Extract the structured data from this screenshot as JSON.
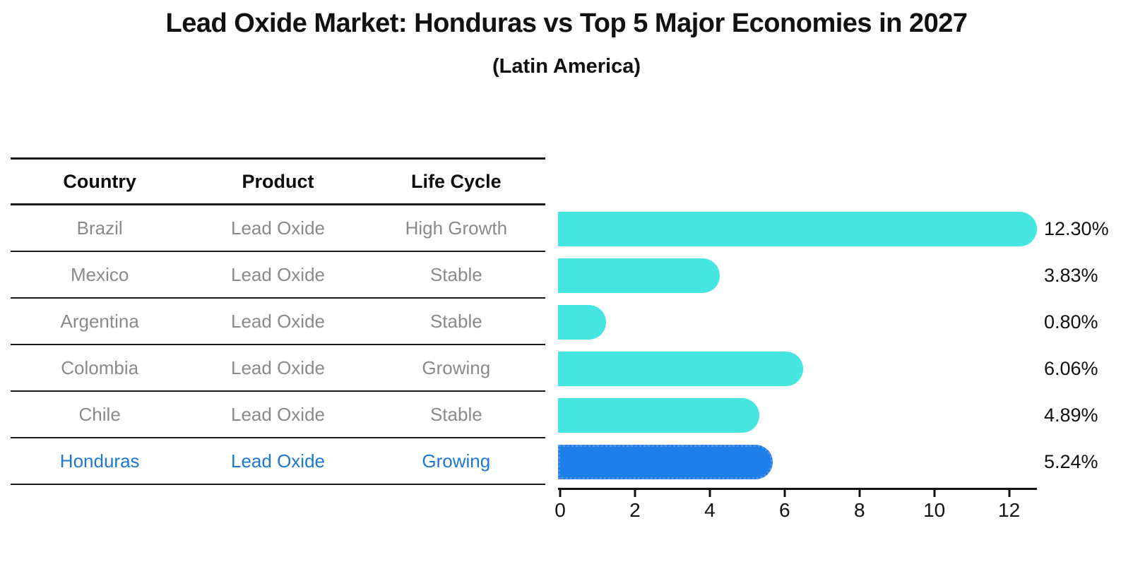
{
  "title": "Lead Oxide Market: Honduras vs Top 5 Major Economies in 2027",
  "subtitle": "(Latin America)",
  "table": {
    "headers": [
      "Country",
      "Product",
      "Life Cycle"
    ],
    "rows": [
      {
        "country": "Brazil",
        "product": "Lead Oxide",
        "life_cycle": "High Growth",
        "highlight": false
      },
      {
        "country": "Mexico",
        "product": "Lead Oxide",
        "life_cycle": "Stable",
        "highlight": false
      },
      {
        "country": "Argentina",
        "product": "Lead Oxide",
        "life_cycle": "Stable",
        "highlight": false
      },
      {
        "country": "Colombia",
        "product": "Lead Oxide",
        "life_cycle": "Growing",
        "highlight": false
      },
      {
        "country": "Chile",
        "product": "Lead Oxide",
        "life_cycle": "Stable",
        "highlight": true
      },
      {
        "country": "Honduras",
        "product": "Lead Oxide",
        "life_cycle": "Growing",
        "highlight": true
      }
    ]
  },
  "chart_data": {
    "type": "bar",
    "orientation": "horizontal",
    "title": "Lead Oxide Market: Honduras vs Top 5 Major Economies in 2027",
    "subtitle": "(Latin America)",
    "categories": [
      "Brazil",
      "Mexico",
      "Argentina",
      "Colombia",
      "Chile",
      "Honduras"
    ],
    "values": [
      12.3,
      3.83,
      0.8,
      6.06,
      4.89,
      5.24
    ],
    "value_labels": [
      "12.30%",
      "3.83%",
      "0.80%",
      "6.06%",
      "4.89%",
      "5.24%"
    ],
    "highlight_index": 5,
    "x_ticks": [
      0,
      2,
      4,
      6,
      8,
      10,
      12
    ],
    "x_tick_labels": [
      "0",
      "2",
      "4",
      "6",
      "8",
      "10",
      "12"
    ],
    "xlim": [
      0,
      12.8
    ],
    "grid": false,
    "legend": "none",
    "bar_color": "#45E6E0",
    "highlight_bar_color": "#1E7FE9",
    "highlight_text_color": "#1E78D2",
    "row_text_color": "#8A8A8A",
    "axis_color": "#111111"
  }
}
